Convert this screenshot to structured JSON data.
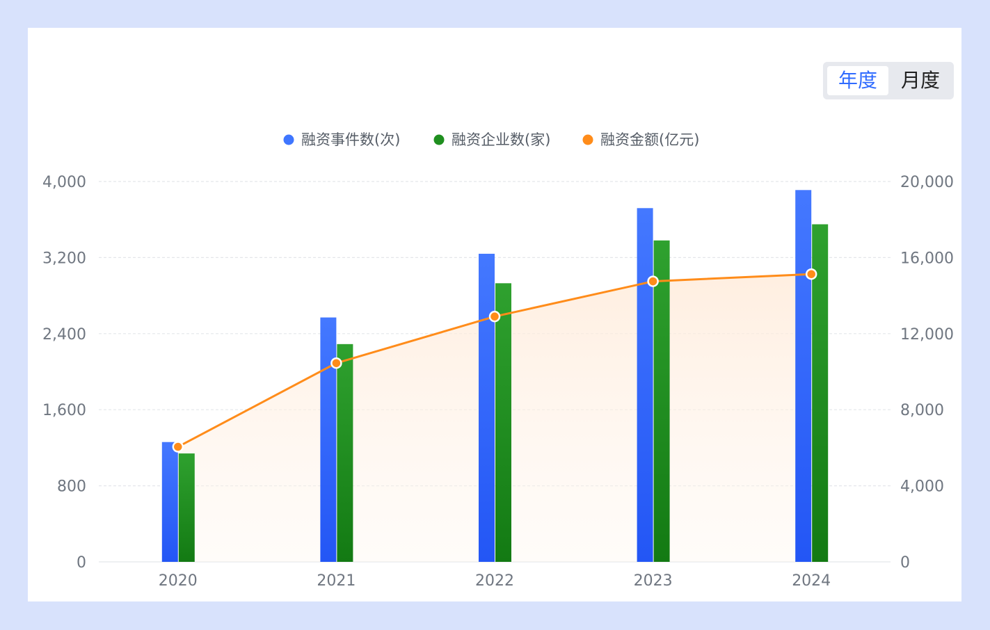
{
  "toggle": {
    "yearly_label": "年度",
    "monthly_label": "月度",
    "selected": "年度"
  },
  "colors": {
    "page_background": "#d8e2fc",
    "events_bar_top": "#4478ff",
    "events_bar_bottom": "#2356f5",
    "companies_bar_top": "#2fa12f",
    "companies_bar_bottom": "#137a13",
    "amount_line": "#ff8c1a",
    "amount_area": "#fff1e4"
  },
  "legend": [
    {
      "label": "融资事件数(次)",
      "color": "#3f76ff"
    },
    {
      "label": "融资企业数(家)",
      "color": "#1f8f1f"
    },
    {
      "label": "融资金额(亿元)",
      "color": "#ff8c1a"
    }
  ],
  "chart_data": {
    "type": "bar",
    "categories": [
      "2020",
      "2021",
      "2022",
      "2023",
      "2024"
    ],
    "series": [
      {
        "name": "融资事件数(次)",
        "type": "bar",
        "axis": "left",
        "values": [
          1260,
          2570,
          3240,
          3720,
          3910
        ]
      },
      {
        "name": "融资企业数(家)",
        "type": "bar",
        "axis": "left",
        "values": [
          1140,
          2290,
          2930,
          3380,
          3550
        ]
      },
      {
        "name": "融资金额(亿元)",
        "type": "line",
        "axis": "right",
        "values": [
          6050,
          10450,
          12900,
          14750,
          15130
        ]
      }
    ],
    "y_left": {
      "ticks": [
        "0",
        "800",
        "1,600",
        "2,400",
        "3,200",
        "4,000"
      ],
      "range": [
        0,
        4000
      ]
    },
    "y_right": {
      "ticks": [
        "0",
        "4,000",
        "8,000",
        "12,000",
        "16,000",
        "20,000"
      ],
      "range": [
        0,
        20000
      ]
    },
    "grid": true,
    "legend_position": "top"
  }
}
